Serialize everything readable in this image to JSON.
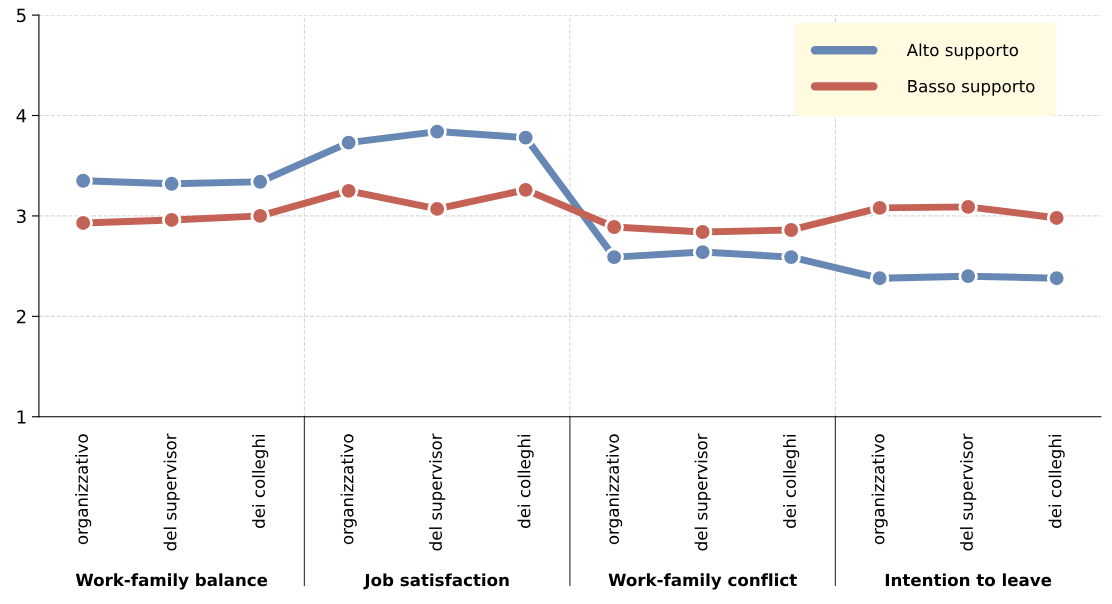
{
  "chart_data": {
    "type": "line",
    "categories": [
      "organizzativo",
      "del supervisor",
      "dei colleghi",
      "organizzativo",
      "del supervisor",
      "dei colleghi",
      "organizzativo",
      "del supervisor",
      "dei colleghi",
      "organizzativo",
      "del supervisor",
      "dei colleghi"
    ],
    "series": [
      {
        "name": "Alto supporto",
        "color": "#6787b4",
        "values": [
          3.35,
          3.32,
          3.34,
          3.73,
          3.84,
          3.78,
          2.59,
          2.64,
          2.59,
          2.38,
          2.4,
          2.38
        ]
      },
      {
        "name": "Basso supporto",
        "color": "#c46355",
        "values": [
          2.93,
          2.96,
          3.0,
          3.25,
          3.07,
          3.26,
          2.89,
          2.84,
          2.86,
          3.08,
          3.09,
          2.98
        ]
      }
    ],
    "annotations": [
      "Work-family balance",
      "Job satisfaction",
      "Work-family conflict",
      "Intention to leave"
    ],
    "ylim": [
      1,
      5
    ],
    "yticks": [
      1,
      2,
      3,
      4,
      5
    ],
    "grid": true,
    "legend": "top right",
    "marker": "circle",
    "line_style": "solid"
  }
}
